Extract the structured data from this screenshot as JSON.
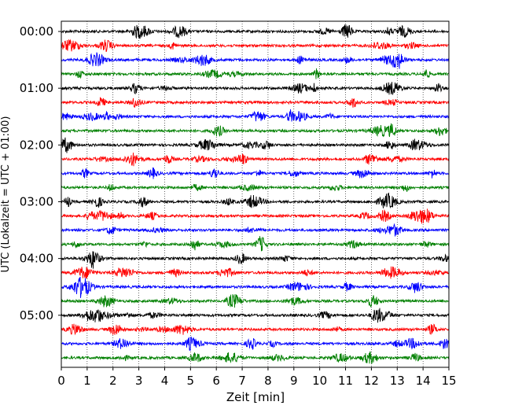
{
  "chart_data": {
    "type": "line",
    "title": "",
    "xlabel": "Zeit  [min]",
    "ylabel": "UTC (Lokalzeit = UTC + 01:00)",
    "xlim": [
      0,
      15
    ],
    "x_ticks": [
      "0",
      "1",
      "2",
      "3",
      "4",
      "5",
      "6",
      "7",
      "8",
      "9",
      "10",
      "11",
      "12",
      "13",
      "14",
      "15"
    ],
    "y_tick_labels": [
      "00:00",
      "01:00",
      "02:00",
      "03:00",
      "04:00",
      "05:00"
    ],
    "trace_colors": [
      "#000000",
      "#ff0000",
      "#0000ff",
      "#008000"
    ],
    "trace_start_times": [
      "00:00",
      "00:15",
      "00:30",
      "00:45",
      "01:00",
      "01:15",
      "01:30",
      "01:45",
      "02:00",
      "02:15",
      "02:30",
      "02:45",
      "03:00",
      "03:15",
      "03:30",
      "03:45",
      "04:00",
      "04:15",
      "04:30",
      "04:45",
      "05:00",
      "05:15",
      "05:30",
      "05:45"
    ],
    "trace_minutes_each": 15,
    "grid": {
      "x": true,
      "y": false,
      "style": "dotted"
    }
  }
}
